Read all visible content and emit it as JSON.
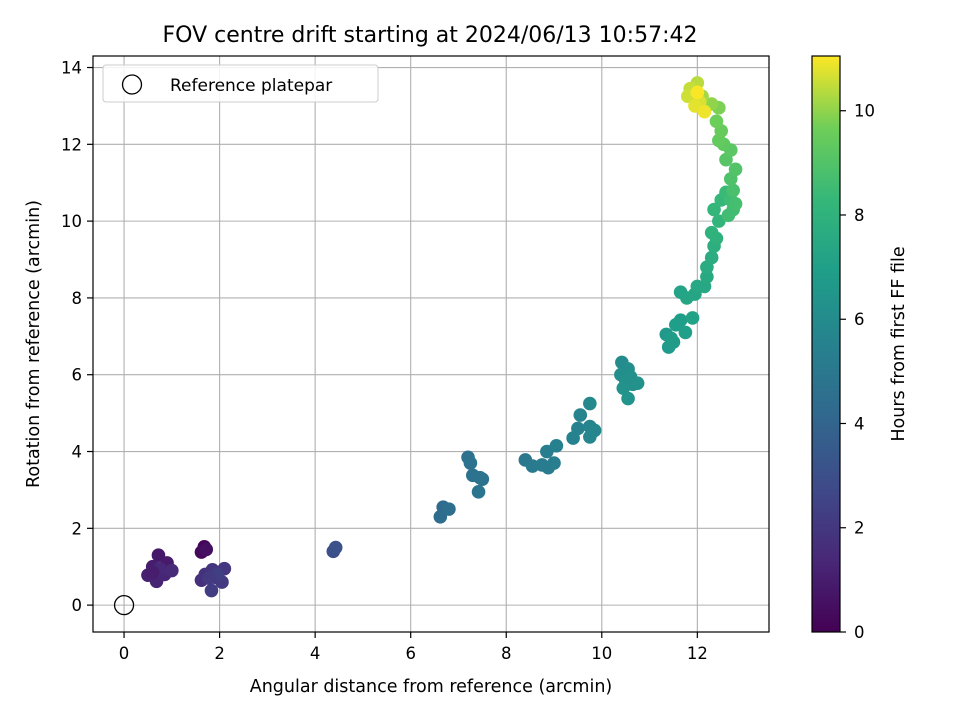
{
  "chart_data": {
    "type": "scatter",
    "title": "FOV centre drift starting at 2024/06/13 10:57:42",
    "xlabel": "Angular distance from reference (arcmin)",
    "ylabel": "Rotation from reference (arcmin)",
    "xlim": [
      -0.65,
      13.5
    ],
    "ylim": [
      -0.7,
      14.3
    ],
    "x_ticks": [
      0,
      2,
      4,
      6,
      8,
      10,
      12
    ],
    "y_ticks": [
      0,
      2,
      4,
      6,
      8,
      10,
      12,
      14
    ],
    "grid": true,
    "legend": {
      "placement": "top-left",
      "entries": [
        "Reference platepar"
      ]
    },
    "colorbar": {
      "label": "Hours from first FF file",
      "range": [
        0,
        11.05
      ],
      "ticks": [
        0,
        2,
        4,
        6,
        8,
        10
      ],
      "colormap": "viridis"
    },
    "reference_point": {
      "x": 0,
      "y": 0
    },
    "points": [
      {
        "x": 1.68,
        "y": 1.52,
        "c": 0.1
      },
      {
        "x": 1.62,
        "y": 1.38,
        "c": 0.3
      },
      {
        "x": 1.72,
        "y": 1.45,
        "c": 0.5
      },
      {
        "x": 0.72,
        "y": 1.3,
        "c": 0.8
      },
      {
        "x": 0.9,
        "y": 1.1,
        "c": 0.9
      },
      {
        "x": 0.6,
        "y": 1.0,
        "c": 1.0
      },
      {
        "x": 0.5,
        "y": 0.78,
        "c": 1.1
      },
      {
        "x": 0.68,
        "y": 0.62,
        "c": 1.2
      },
      {
        "x": 0.85,
        "y": 0.8,
        "c": 1.3
      },
      {
        "x": 0.75,
        "y": 0.95,
        "c": 1.4
      },
      {
        "x": 1.0,
        "y": 0.9,
        "c": 1.5
      },
      {
        "x": 0.6,
        "y": 0.85,
        "c": 1.0
      },
      {
        "x": 1.62,
        "y": 0.65,
        "c": 1.7
      },
      {
        "x": 1.7,
        "y": 0.8,
        "c": 1.8
      },
      {
        "x": 1.85,
        "y": 0.92,
        "c": 1.9
      },
      {
        "x": 1.92,
        "y": 0.72,
        "c": 2.0
      },
      {
        "x": 2.05,
        "y": 0.6,
        "c": 2.1
      },
      {
        "x": 1.83,
        "y": 0.38,
        "c": 2.2
      },
      {
        "x": 2.1,
        "y": 0.95,
        "c": 2.0
      },
      {
        "x": 1.95,
        "y": 0.8,
        "c": 2.3
      },
      {
        "x": 1.78,
        "y": 0.7,
        "c": 2.1
      },
      {
        "x": 4.38,
        "y": 1.4,
        "c": 3.0
      },
      {
        "x": 4.43,
        "y": 1.5,
        "c": 3.1
      },
      {
        "x": 6.68,
        "y": 2.55,
        "c": 4.3
      },
      {
        "x": 6.62,
        "y": 2.3,
        "c": 4.4
      },
      {
        "x": 6.8,
        "y": 2.5,
        "c": 4.5
      },
      {
        "x": 7.2,
        "y": 3.85,
        "c": 4.6
      },
      {
        "x": 7.25,
        "y": 3.7,
        "c": 4.7
      },
      {
        "x": 7.3,
        "y": 3.38,
        "c": 4.7
      },
      {
        "x": 7.45,
        "y": 3.32,
        "c": 4.8
      },
      {
        "x": 7.5,
        "y": 3.28,
        "c": 4.8
      },
      {
        "x": 7.42,
        "y": 2.95,
        "c": 4.9
      },
      {
        "x": 8.4,
        "y": 3.78,
        "c": 5.0
      },
      {
        "x": 8.55,
        "y": 3.62,
        "c": 5.1
      },
      {
        "x": 8.75,
        "y": 3.65,
        "c": 5.2
      },
      {
        "x": 8.88,
        "y": 3.58,
        "c": 5.2
      },
      {
        "x": 8.85,
        "y": 4.0,
        "c": 5.3
      },
      {
        "x": 9.0,
        "y": 3.7,
        "c": 5.3
      },
      {
        "x": 9.05,
        "y": 4.15,
        "c": 5.4
      },
      {
        "x": 9.4,
        "y": 4.35,
        "c": 5.5
      },
      {
        "x": 9.5,
        "y": 4.6,
        "c": 5.5
      },
      {
        "x": 9.55,
        "y": 4.95,
        "c": 5.6
      },
      {
        "x": 9.75,
        "y": 4.65,
        "c": 5.6
      },
      {
        "x": 9.75,
        "y": 4.38,
        "c": 5.7
      },
      {
        "x": 9.85,
        "y": 4.55,
        "c": 5.7
      },
      {
        "x": 9.75,
        "y": 5.25,
        "c": 5.8
      },
      {
        "x": 10.42,
        "y": 6.32,
        "c": 6.0
      },
      {
        "x": 10.55,
        "y": 6.15,
        "c": 6.1
      },
      {
        "x": 10.4,
        "y": 6.0,
        "c": 6.1
      },
      {
        "x": 10.5,
        "y": 5.85,
        "c": 6.2
      },
      {
        "x": 10.65,
        "y": 5.75,
        "c": 6.2
      },
      {
        "x": 10.75,
        "y": 5.78,
        "c": 6.3
      },
      {
        "x": 10.45,
        "y": 5.65,
        "c": 6.3
      },
      {
        "x": 10.55,
        "y": 5.38,
        "c": 6.4
      },
      {
        "x": 10.6,
        "y": 5.95,
        "c": 6.2
      },
      {
        "x": 11.35,
        "y": 7.05,
        "c": 6.6
      },
      {
        "x": 11.4,
        "y": 6.72,
        "c": 6.7
      },
      {
        "x": 11.5,
        "y": 6.85,
        "c": 6.8
      },
      {
        "x": 11.55,
        "y": 7.3,
        "c": 6.9
      },
      {
        "x": 11.65,
        "y": 7.42,
        "c": 6.9
      },
      {
        "x": 11.75,
        "y": 7.1,
        "c": 7.0
      },
      {
        "x": 11.45,
        "y": 6.95,
        "c": 6.8
      },
      {
        "x": 11.9,
        "y": 7.48,
        "c": 7.1
      },
      {
        "x": 11.65,
        "y": 8.15,
        "c": 7.2
      },
      {
        "x": 11.78,
        "y": 8.0,
        "c": 7.3
      },
      {
        "x": 11.95,
        "y": 8.1,
        "c": 7.3
      },
      {
        "x": 12.0,
        "y": 8.3,
        "c": 7.4
      },
      {
        "x": 12.15,
        "y": 8.3,
        "c": 7.4
      },
      {
        "x": 12.2,
        "y": 8.55,
        "c": 7.5
      },
      {
        "x": 12.2,
        "y": 8.8,
        "c": 7.6
      },
      {
        "x": 12.3,
        "y": 9.05,
        "c": 7.7
      },
      {
        "x": 12.35,
        "y": 9.35,
        "c": 7.8
      },
      {
        "x": 12.4,
        "y": 9.55,
        "c": 7.9
      },
      {
        "x": 12.3,
        "y": 9.7,
        "c": 8.0
      },
      {
        "x": 12.45,
        "y": 10.0,
        "c": 8.1
      },
      {
        "x": 12.35,
        "y": 10.3,
        "c": 8.2
      },
      {
        "x": 12.5,
        "y": 10.55,
        "c": 8.3
      },
      {
        "x": 12.6,
        "y": 10.75,
        "c": 8.4
      },
      {
        "x": 12.7,
        "y": 10.55,
        "c": 8.5
      },
      {
        "x": 12.75,
        "y": 10.3,
        "c": 8.6
      },
      {
        "x": 12.65,
        "y": 10.15,
        "c": 8.6
      },
      {
        "x": 12.8,
        "y": 10.45,
        "c": 8.7
      },
      {
        "x": 12.75,
        "y": 10.8,
        "c": 8.8
      },
      {
        "x": 12.7,
        "y": 11.1,
        "c": 8.9
      },
      {
        "x": 12.8,
        "y": 11.35,
        "c": 9.0
      },
      {
        "x": 12.6,
        "y": 11.6,
        "c": 9.1
      },
      {
        "x": 12.7,
        "y": 11.85,
        "c": 9.2
      },
      {
        "x": 12.55,
        "y": 12.0,
        "c": 9.3
      },
      {
        "x": 12.45,
        "y": 12.1,
        "c": 9.4
      },
      {
        "x": 12.5,
        "y": 12.35,
        "c": 9.5
      },
      {
        "x": 12.4,
        "y": 12.6,
        "c": 9.6
      },
      {
        "x": 12.45,
        "y": 12.95,
        "c": 9.8
      },
      {
        "x": 12.3,
        "y": 13.05,
        "c": 10.0
      },
      {
        "x": 12.1,
        "y": 13.25,
        "c": 10.2
      },
      {
        "x": 12.0,
        "y": 13.6,
        "c": 10.4
      },
      {
        "x": 11.85,
        "y": 13.45,
        "c": 10.5
      },
      {
        "x": 11.8,
        "y": 13.25,
        "c": 10.6
      },
      {
        "x": 12.05,
        "y": 13.1,
        "c": 10.7
      },
      {
        "x": 11.95,
        "y": 13.0,
        "c": 10.8
      },
      {
        "x": 12.15,
        "y": 12.85,
        "c": 10.9
      },
      {
        "x": 12.0,
        "y": 13.35,
        "c": 11.0
      }
    ]
  }
}
